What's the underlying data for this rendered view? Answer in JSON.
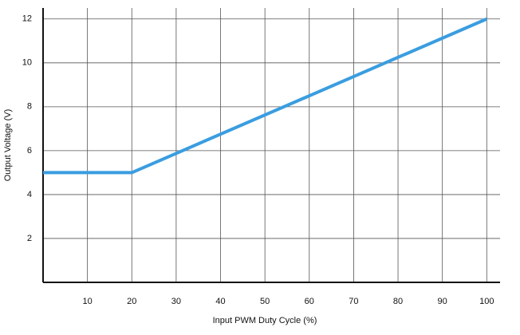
{
  "chart_data": {
    "type": "line",
    "x_label": "Input PWM Duty Cycle (%)",
    "y_label": "Output Voltage (V)",
    "x": [
      0,
      20,
      100
    ],
    "series": [
      {
        "color": "#3a9de0",
        "values": [
          5,
          5,
          12
        ]
      }
    ],
    "xlim": [
      0,
      103
    ],
    "ylim": [
      0,
      12.5
    ],
    "xticks": [
      10,
      20,
      30,
      40,
      50,
      60,
      70,
      80,
      90,
      100
    ],
    "yticks": [
      2,
      4,
      6,
      8,
      10,
      12
    ],
    "grid": true
  }
}
